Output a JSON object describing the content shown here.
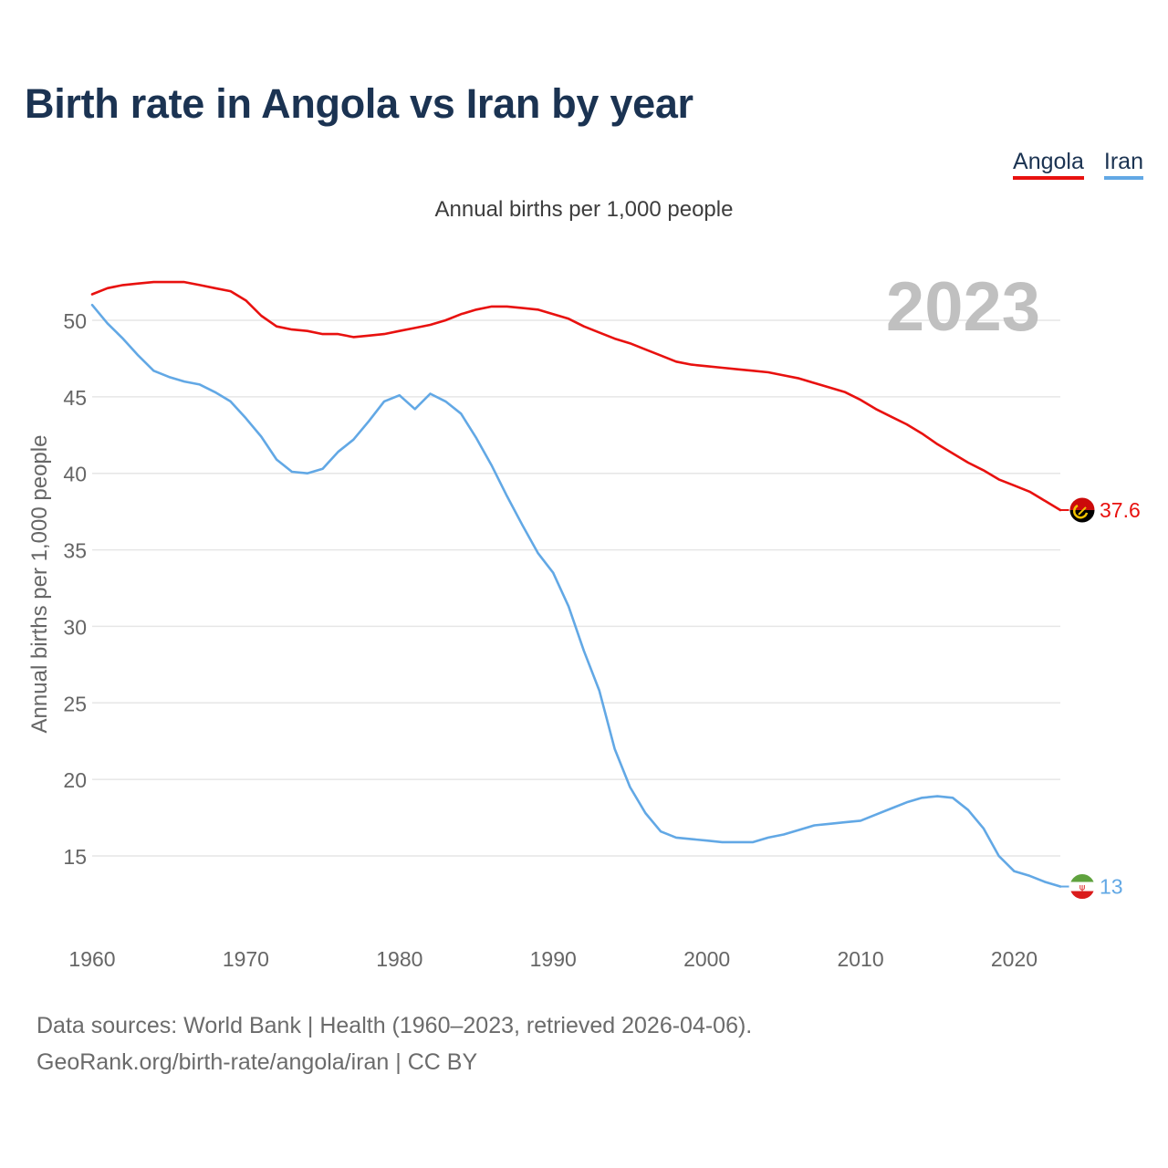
{
  "title": "Birth rate in Angola vs Iran by year",
  "legend": [
    {
      "name": "Angola",
      "color": "#e8110f"
    },
    {
      "name": "Iran",
      "color": "#62a8e5"
    }
  ],
  "footer": {
    "line1": "Data sources: World Bank | Health (1960–2023, retrieved 2026-04-06).",
    "line2": "GeoRank.org/birth-rate/angola/iran | CC BY"
  },
  "chart_data": {
    "type": "line",
    "title": "Birth rate in Angola vs Iran by year",
    "subtitle": "Annual births per 1,000 people",
    "ylabel": "Annual births per 1,000 people",
    "xlabel": "",
    "year_label": "2023",
    "xlim": [
      1960,
      2023
    ],
    "ylim": [
      10.4,
      53.5
    ],
    "yticks": [
      15,
      20,
      25,
      30,
      35,
      40,
      45,
      50
    ],
    "xticks": [
      1960,
      1970,
      1980,
      1990,
      2000,
      2010,
      2020
    ],
    "grid": true,
    "x": [
      1960,
      1961,
      1962,
      1963,
      1964,
      1965,
      1966,
      1967,
      1968,
      1969,
      1970,
      1971,
      1972,
      1973,
      1974,
      1975,
      1976,
      1977,
      1978,
      1979,
      1980,
      1981,
      1982,
      1983,
      1984,
      1985,
      1986,
      1987,
      1988,
      1989,
      1990,
      1991,
      1992,
      1993,
      1994,
      1995,
      1996,
      1997,
      1998,
      1999,
      2000,
      2001,
      2002,
      2003,
      2004,
      2005,
      2006,
      2007,
      2008,
      2009,
      2010,
      2011,
      2012,
      2013,
      2014,
      2015,
      2016,
      2017,
      2018,
      2019,
      2020,
      2021,
      2022,
      2023
    ],
    "series": [
      {
        "name": "Angola",
        "color": "#e8110f",
        "end_label": "37.6",
        "values": [
          51.7,
          52.1,
          52.3,
          52.4,
          52.5,
          52.5,
          52.5,
          52.3,
          52.1,
          51.9,
          51.3,
          50.3,
          49.6,
          49.4,
          49.3,
          49.1,
          49.1,
          48.9,
          49.0,
          49.1,
          49.3,
          49.5,
          49.7,
          50.0,
          50.4,
          50.7,
          50.9,
          50.9,
          50.8,
          50.7,
          50.4,
          50.1,
          49.6,
          49.2,
          48.8,
          48.5,
          48.1,
          47.7,
          47.3,
          47.1,
          47.0,
          46.9,
          46.8,
          46.7,
          46.6,
          46.4,
          46.2,
          45.9,
          45.6,
          45.3,
          44.8,
          44.2,
          43.7,
          43.2,
          42.6,
          41.9,
          41.3,
          40.7,
          40.2,
          39.6,
          39.2,
          38.8,
          38.2,
          37.6
        ]
      },
      {
        "name": "Iran",
        "color": "#62a8e5",
        "end_label": "13",
        "values": [
          51.0,
          49.8,
          48.8,
          47.7,
          46.7,
          46.3,
          46.0,
          45.8,
          45.3,
          44.7,
          43.6,
          42.4,
          40.9,
          40.1,
          40.0,
          40.3,
          41.4,
          42.2,
          43.4,
          44.7,
          45.1,
          44.2,
          45.2,
          44.7,
          43.9,
          42.3,
          40.5,
          38.5,
          36.6,
          34.8,
          33.5,
          31.3,
          28.4,
          25.8,
          22.0,
          19.5,
          17.8,
          16.6,
          16.2,
          16.1,
          16.0,
          15.9,
          15.9,
          15.9,
          16.2,
          16.4,
          16.7,
          17.0,
          17.1,
          17.2,
          17.3,
          17.7,
          18.1,
          18.5,
          18.8,
          18.9,
          18.8,
          18.0,
          16.8,
          15.0,
          14.0,
          13.7,
          13.3,
          13.0
        ]
      }
    ]
  }
}
